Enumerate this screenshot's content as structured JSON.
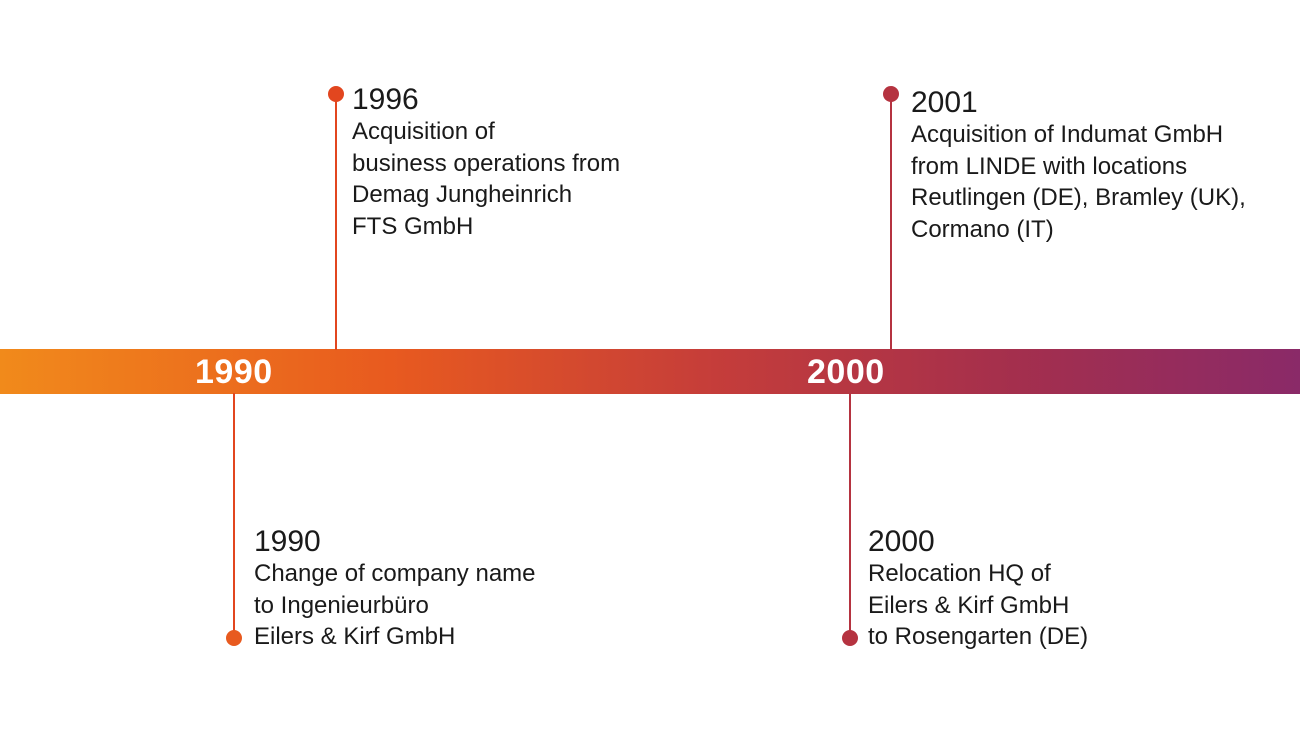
{
  "timeline": {
    "decades": [
      "1990",
      "2000"
    ],
    "colors": {
      "gradient_start": "#f18a1b",
      "gradient_mid": "#c53d3a",
      "gradient_end": "#8a2a68",
      "stem_orange": "#e2461f",
      "stem_red": "#b53340"
    }
  },
  "events": [
    {
      "year": "1996",
      "lines": [
        "Acquisition of",
        "business operations from",
        "Demag Jungheinrich",
        "FTS GmbH"
      ]
    },
    {
      "year": "2001",
      "lines": [
        "Acquisition of Indumat GmbH",
        "from LINDE with locations",
        "Reutlingen (DE), Bramley (UK),",
        "Cormano (IT)"
      ]
    },
    {
      "year": "1990",
      "lines": [
        "Change of company name",
        "to Ingenieurbüro",
        "Eilers & Kirf GmbH"
      ]
    },
    {
      "year": "2000",
      "lines": [
        "Relocation HQ of",
        "Eilers & Kirf GmbH",
        "to Rosengarten (DE)"
      ]
    }
  ]
}
